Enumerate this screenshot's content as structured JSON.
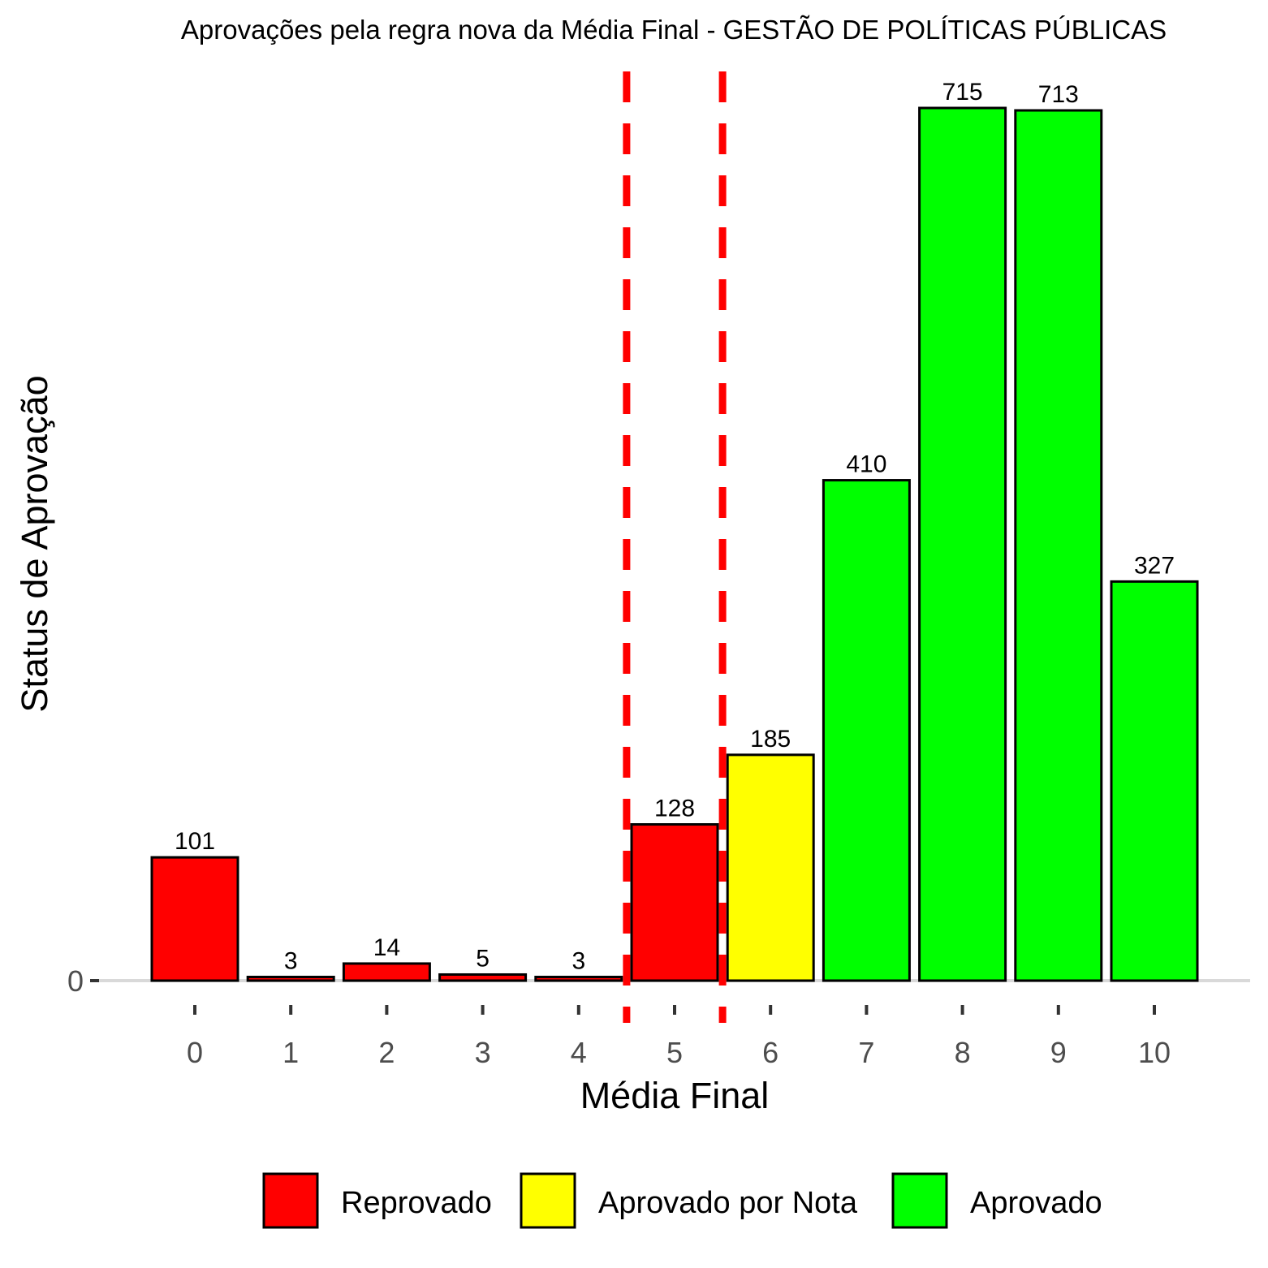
{
  "chart_data": {
    "type": "bar",
    "title": "Aprovações pela regra nova da Média Final - GESTÃO DE POLÍTICAS PÚBLICAS",
    "xlabel": "Média Final",
    "ylabel": "Status de Aprovação",
    "categories": [
      "0",
      "1",
      "2",
      "3",
      "4",
      "5",
      "6",
      "7",
      "8",
      "9",
      "10"
    ],
    "values": [
      101,
      3,
      14,
      5,
      3,
      128,
      185,
      410,
      715,
      713,
      327
    ],
    "status": [
      "Reprovado",
      "Reprovado",
      "Reprovado",
      "Reprovado",
      "Reprovado",
      "Reprovado",
      "Aprovado por Nota",
      "Aprovado",
      "Aprovado",
      "Aprovado",
      "Aprovado"
    ],
    "y_ticks": [
      "0"
    ],
    "ylim": [
      0,
      715
    ],
    "reference_lines_x": [
      4.5,
      5.5
    ],
    "reference_line_color": "#ff0000",
    "grid": false,
    "legend_position": "bottom",
    "legend": [
      {
        "label": "Reprovado",
        "color": "#ff0000"
      },
      {
        "label": "Aprovado por Nota",
        "color": "#ffff00"
      },
      {
        "label": "Aprovado",
        "color": "#00ff00"
      }
    ]
  }
}
